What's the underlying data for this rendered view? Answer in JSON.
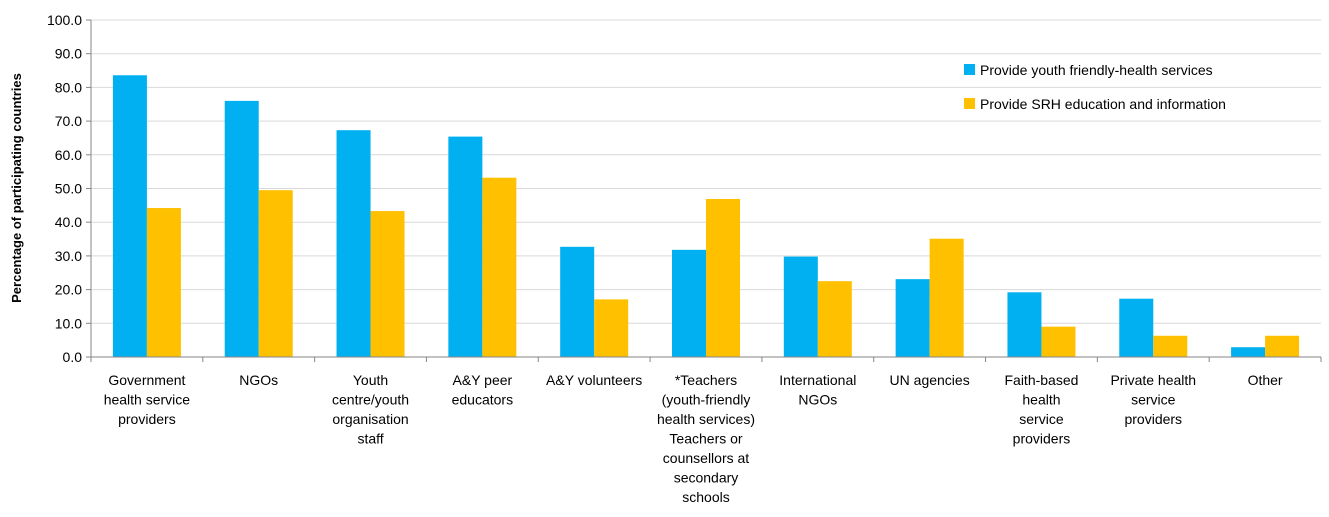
{
  "chart_data": {
    "type": "bar",
    "title": "",
    "xlabel": "",
    "ylabel": "Percentage of participating countries",
    "ylim": [
      0,
      100
    ],
    "ytick_step": 10,
    "ytick_labels": [
      "0.0",
      "10.0",
      "20.0",
      "30.0",
      "40.0",
      "50.0",
      "60.0",
      "70.0",
      "80.0",
      "90.0",
      "100.0"
    ],
    "grid": true,
    "legend_position": "top-right",
    "categories": [
      [
        "Government",
        "health service",
        "providers"
      ],
      [
        "NGOs"
      ],
      [
        "Youth",
        "centre/youth",
        "organisation",
        "staff"
      ],
      [
        "A&Y peer",
        "educators"
      ],
      [
        "A&Y volunteers"
      ],
      [
        "*Teachers",
        "(youth-friendly",
        "health services)",
        "Teachers or",
        "counsellors at",
        "secondary",
        "schools"
      ],
      [
        "International",
        "NGOs"
      ],
      [
        "UN agencies"
      ],
      [
        "Faith-based",
        "health",
        "service",
        "providers"
      ],
      [
        "Private health",
        "service",
        "providers"
      ],
      [
        "Other"
      ]
    ],
    "series": [
      {
        "name": "Provide youth friendly-health services",
        "color": "#00b0f0",
        "values": [
          83.6,
          76.0,
          67.3,
          65.4,
          32.7,
          31.8,
          29.8,
          23.1,
          19.2,
          17.3,
          2.9
        ]
      },
      {
        "name": "Provide SRH education and information",
        "color": "#ffc000",
        "values": [
          44.2,
          49.5,
          43.3,
          53.2,
          17.1,
          46.9,
          22.5,
          35.1,
          9.0,
          6.3,
          6.3
        ]
      }
    ]
  }
}
